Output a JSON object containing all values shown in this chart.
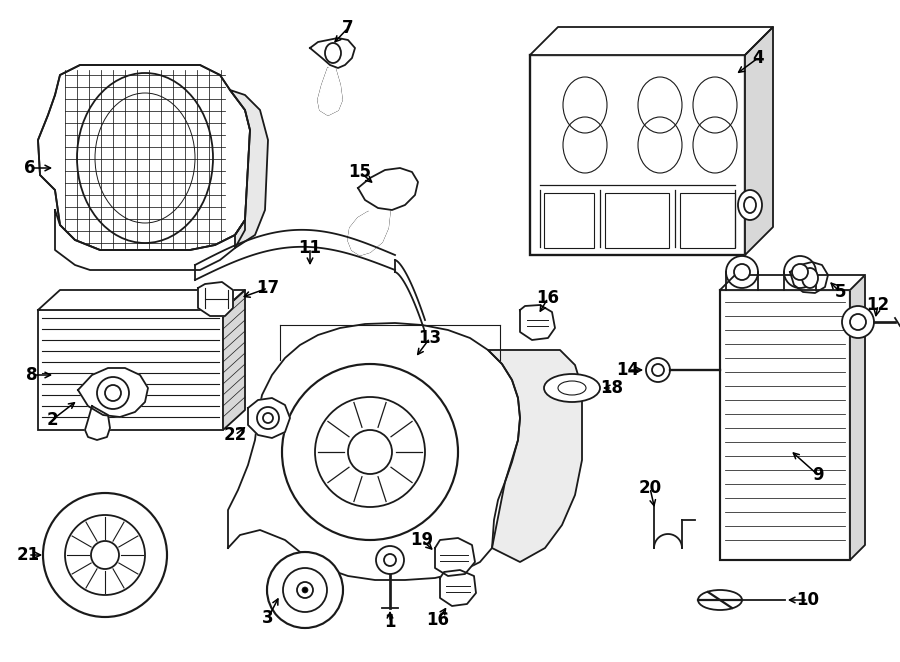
{
  "bg_color": "#ffffff",
  "line_color": "#1a1a1a",
  "lw": 1.3,
  "figsize": [
    9.0,
    6.62
  ],
  "dpi": 100
}
